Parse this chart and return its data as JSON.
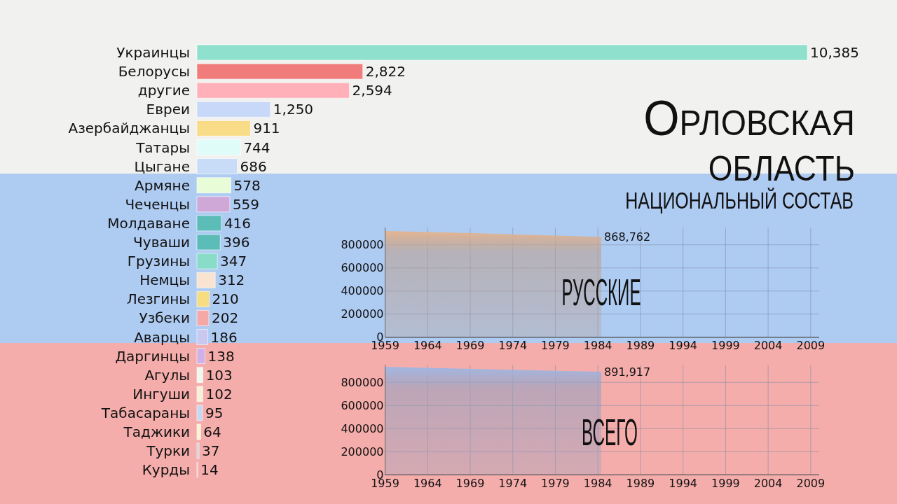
{
  "chart_data": [
    {
      "type": "bar",
      "orientation": "horizontal",
      "title": "Орловская область",
      "subtitle": "НАЦИОНАЛЬНЫЙ СОСТАВ",
      "categories": [
        "Украинцы",
        "Белорусы",
        "другие",
        "Евреи",
        "Азербайджанцы",
        "Татары",
        "Цыгане",
        "Армяне",
        "Чеченцы",
        "Молдаване",
        "Чуваши",
        "Грузины",
        "Немцы",
        "Лезгины",
        "Узбеки",
        "Аварцы",
        "Даргинцы",
        "Агулы",
        "Ингуши",
        "Табасараны",
        "Таджики",
        "Турки",
        "Курды"
      ],
      "values": [
        10385,
        2822,
        2594,
        1250,
        911,
        744,
        686,
        578,
        559,
        416,
        396,
        347,
        312,
        210,
        202,
        186,
        138,
        103,
        102,
        95,
        64,
        37,
        14
      ],
      "value_labels": [
        "10,385",
        "2,822",
        "2,594",
        "1,250",
        "911",
        "744",
        "686",
        "578",
        "559",
        "416",
        "396",
        "347",
        "312",
        "210",
        "202",
        "186",
        "138",
        "103",
        "102",
        "95",
        "64",
        "37",
        "14"
      ],
      "colors": [
        "#8fe0cc",
        "#f07c7c",
        "#ffb0b8",
        "#c8d8f8",
        "#f8dc88",
        "#e0fcf8",
        "#c8dcf8",
        "#e8fcd8",
        "#d0a8d8",
        "#5cbcb8",
        "#5cbcb8",
        "#88dcc8",
        "#f8e4d0",
        "#f8dc80",
        "#f4a8a8",
        "#c8c8f0",
        "#d0b0e8",
        "#f0f8f0",
        "#f8f0d8",
        "#c8d8f0",
        "#f8f4d0",
        "#d0d0e0",
        "#e8c8d0"
      ]
    },
    {
      "type": "area",
      "title": "РУССКИЕ",
      "x": [
        1959,
        1970,
        1979,
        1984.4
      ],
      "values": [
        920000,
        900000,
        880000,
        868762
      ],
      "value_labels": [
        null,
        null,
        null,
        "868,762"
      ],
      "color": "#e8b48c",
      "xlim": [
        1959,
        2010
      ],
      "ylim": [
        0,
        950000
      ],
      "xticks": [
        1959,
        1964,
        1969,
        1974,
        1979,
        1984,
        1989,
        1994,
        1999,
        2004,
        2009
      ],
      "yticks": [
        0,
        200000,
        400000,
        600000,
        800000
      ],
      "grid": true
    },
    {
      "type": "area",
      "title": "ВСЕГО",
      "x": [
        1959,
        1970,
        1979,
        1984.4
      ],
      "values": [
        935000,
        915000,
        900000,
        891917
      ],
      "value_labels": [
        null,
        null,
        null,
        "891,917"
      ],
      "color": "#9fb8e6",
      "xlim": [
        1959,
        2010
      ],
      "ylim": [
        0,
        950000
      ],
      "xticks": [
        1959,
        1964,
        1969,
        1974,
        1979,
        1984,
        1989,
        1994,
        1999,
        2004,
        2009
      ],
      "yticks": [
        0,
        200000,
        400000,
        600000,
        800000
      ],
      "grid": true
    }
  ]
}
